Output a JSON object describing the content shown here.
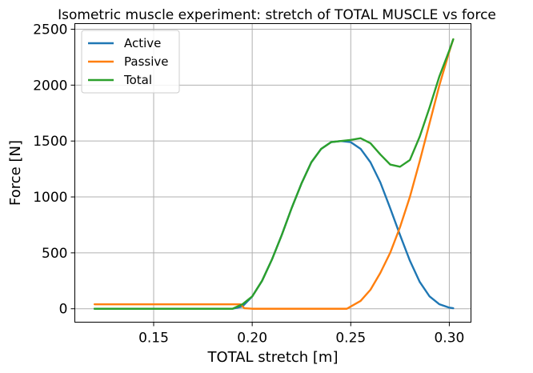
{
  "chart_data": {
    "type": "line",
    "title": "Isometric muscle experiment: stretch of TOTAL MUSCLE vs force",
    "xlabel": "TOTAL stretch [m]",
    "ylabel": "Force [N]",
    "xlim": [
      0.11,
      0.311
    ],
    "ylim": [
      -120,
      2550
    ],
    "xticks": [
      0.15,
      0.2,
      0.25,
      0.3
    ],
    "xtick_labels": [
      "0.15",
      "0.20",
      "0.25",
      "0.30"
    ],
    "yticks": [
      0,
      500,
      1000,
      1500,
      2000,
      2500
    ],
    "ytick_labels": [
      "0",
      "500",
      "1000",
      "1500",
      "2000",
      "2500"
    ],
    "grid": true,
    "legend_position": "top-left",
    "series": [
      {
        "name": "Active",
        "color": "#1f77b4",
        "x": [
          0.12,
          0.19,
          0.195,
          0.2,
          0.205,
          0.21,
          0.215,
          0.22,
          0.225,
          0.23,
          0.235,
          0.24,
          0.245,
          0.25,
          0.255,
          0.26,
          0.265,
          0.27,
          0.275,
          0.28,
          0.285,
          0.29,
          0.295,
          0.3,
          0.302
        ],
        "y": [
          0,
          0,
          20,
          110,
          250,
          440,
          660,
          900,
          1120,
          1310,
          1430,
          1490,
          1500,
          1490,
          1430,
          1310,
          1130,
          900,
          660,
          430,
          240,
          110,
          40,
          10,
          5
        ]
      },
      {
        "name": "Passive",
        "color": "#ff7f0e",
        "x": [
          0.12,
          0.19,
          0.194,
          0.196,
          0.2,
          0.248,
          0.25,
          0.255,
          0.26,
          0.265,
          0.27,
          0.275,
          0.28,
          0.285,
          0.29,
          0.295,
          0.3,
          0.302
        ],
        "y": [
          40,
          40,
          40,
          5,
          0,
          0,
          20,
          70,
          170,
          320,
          500,
          730,
          1000,
          1320,
          1660,
          2000,
          2300,
          2410
        ]
      },
      {
        "name": "Total",
        "color": "#2ca02c",
        "x": [
          0.12,
          0.19,
          0.195,
          0.2,
          0.205,
          0.21,
          0.215,
          0.22,
          0.225,
          0.23,
          0.235,
          0.24,
          0.245,
          0.25,
          0.255,
          0.26,
          0.265,
          0.27,
          0.275,
          0.28,
          0.285,
          0.29,
          0.295,
          0.3,
          0.302
        ],
        "y": [
          0,
          0,
          40,
          110,
          250,
          440,
          660,
          900,
          1120,
          1310,
          1430,
          1490,
          1500,
          1510,
          1525,
          1480,
          1380,
          1290,
          1270,
          1330,
          1540,
          1800,
          2080,
          2310,
          2410
        ]
      }
    ]
  }
}
